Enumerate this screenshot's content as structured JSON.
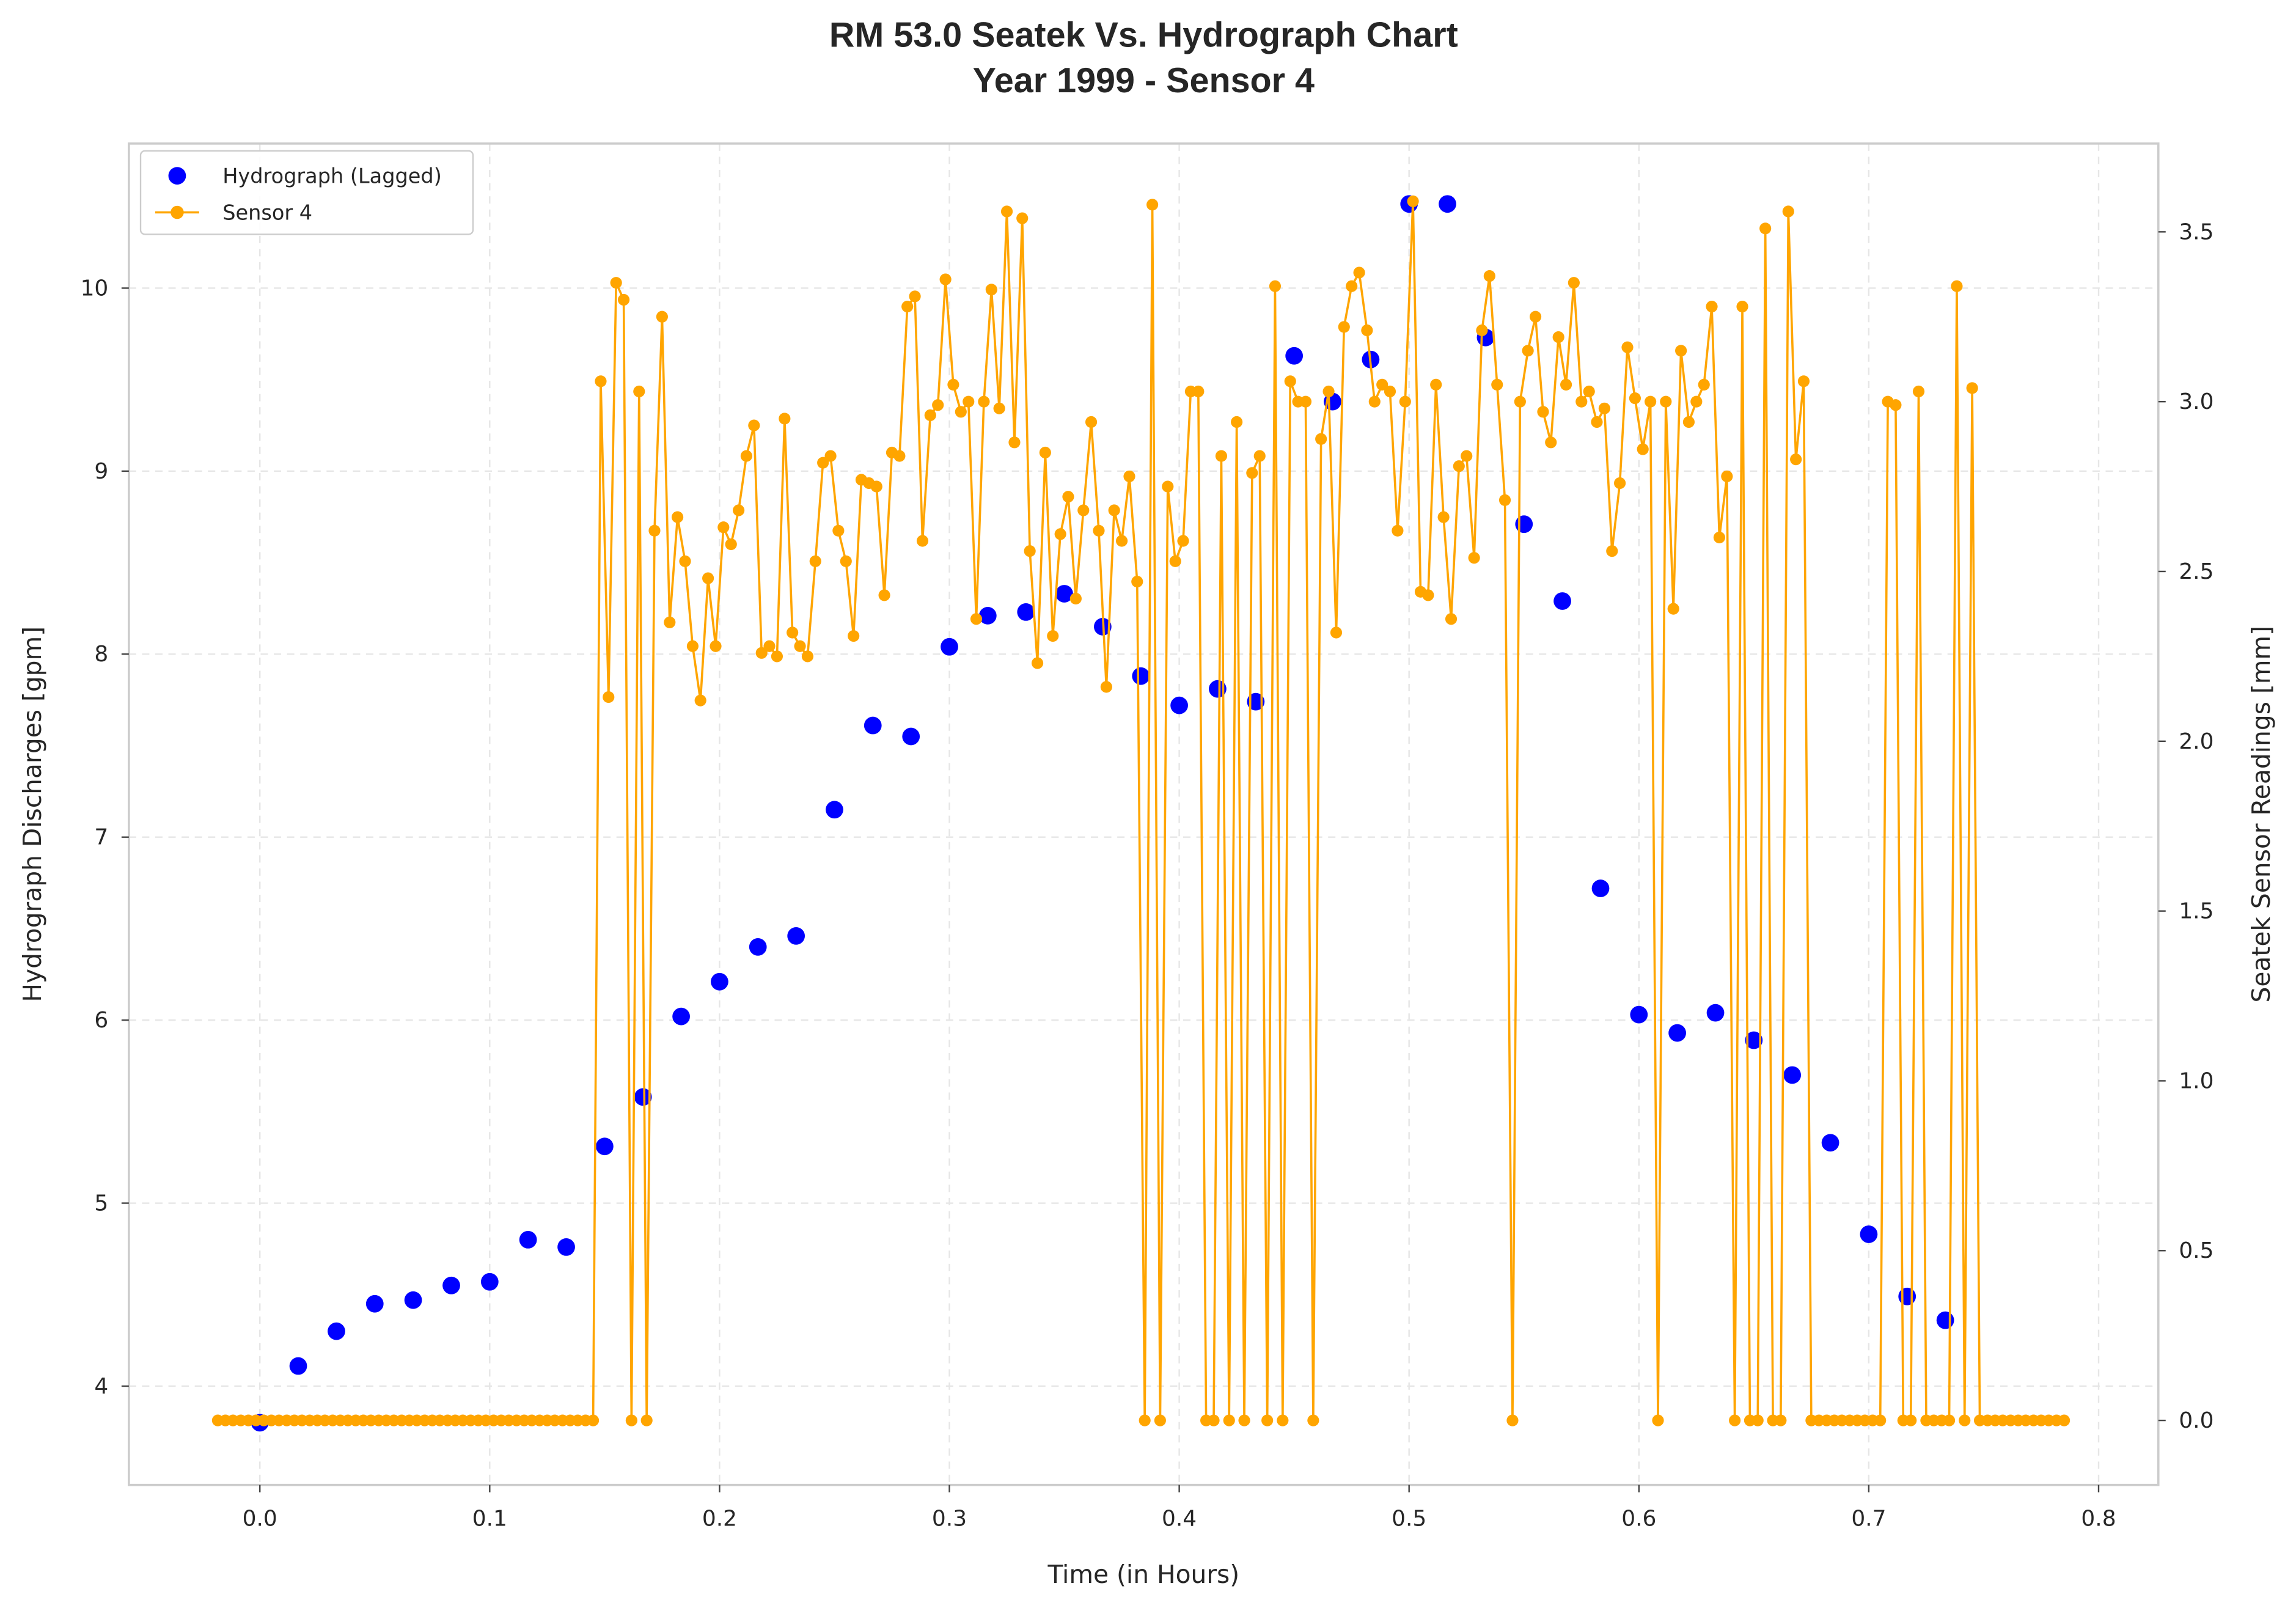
{
  "chart_data": {
    "type": "line",
    "title": "RM 53.0 Seatek Vs. Hydrograph Chart",
    "subtitle": "Year 1999 - Sensor 4",
    "x_label": "Time (in Hours)",
    "y_label": "Hydrograph Discharges [gpm]",
    "y2_label": "Seatek Sensor Readings [mm]",
    "xlim": [
      -0.057,
      0.826
    ],
    "xticks": [
      {
        "value": 0,
        "label": "0.0"
      },
      0.1,
      0.2,
      0.3,
      0.4,
      0.5,
      0.6,
      0.7,
      0.8
    ],
    "ylim": [
      3.46,
      10.79
    ],
    "yticks": [
      4,
      5,
      6,
      7,
      8,
      9,
      10
    ],
    "y2lim": [
      -0.19,
      3.76
    ],
    "y2ticks": [
      {
        "value": 0,
        "label": "0.0"
      },
      0.5,
      {
        "value": 1,
        "label": "1.0"
      },
      1.5,
      {
        "value": 2,
        "label": "2.0"
      },
      2.5,
      {
        "value": 3,
        "label": "3.0"
      },
      3.5
    ],
    "grid": true,
    "legend": "upper left",
    "series": [
      {
        "name": "Hydrograph (Lagged)",
        "color": "#0000ff",
        "style": "markers",
        "axis": "y",
        "x": [
          0,
          0.0167,
          0.0333,
          0.05,
          0.0667,
          0.0833,
          0.1,
          0.1167,
          0.1333,
          0.15,
          0.1667,
          0.1833,
          0.2,
          0.2167,
          0.2333,
          0.25,
          0.2667,
          0.2833,
          0.3,
          0.3167,
          0.3333,
          0.35,
          0.3667,
          0.3833,
          0.4,
          0.4167,
          0.4333,
          0.45,
          0.4667,
          0.4833,
          0.5,
          0.5167,
          0.5333,
          0.55,
          0.5667,
          0.5833,
          0.6,
          0.6167,
          0.6333,
          0.65,
          0.6667,
          0.6833,
          0.7,
          0.7167,
          0.7333
        ],
        "values": [
          3.8,
          4.11,
          4.3,
          4.45,
          4.47,
          4.55,
          4.57,
          4.8,
          4.76,
          5.31,
          5.58,
          6.02,
          6.21,
          6.4,
          6.46,
          7.15,
          7.61,
          7.55,
          8.04,
          8.21,
          8.23,
          8.33,
          8.15,
          7.88,
          7.72,
          7.81,
          7.74,
          9.63,
          9.38,
          9.61,
          10.46,
          10.46,
          9.73,
          8.71,
          8.29,
          6.72,
          6.03,
          5.93,
          6.04,
          5.89,
          5.7,
          5.33,
          4.83,
          4.49,
          4.36
        ]
      },
      {
        "name": "Sensor 4",
        "color": "#ffa500",
        "style": "lines+markers",
        "axis": "y2",
        "x": [
          -0.0183,
          -0.015,
          -0.0117,
          -0.0083,
          -0.005,
          -0.0017,
          0.0017,
          0.005,
          0.0083,
          0.0117,
          0.015,
          0.0183,
          0.0217,
          0.025,
          0.0283,
          0.0317,
          0.035,
          0.0383,
          0.0417,
          0.045,
          0.0483,
          0.0517,
          0.055,
          0.0583,
          0.0617,
          0.065,
          0.0683,
          0.0717,
          0.075,
          0.0783,
          0.0817,
          0.085,
          0.0883,
          0.0917,
          0.095,
          0.0983,
          0.1017,
          0.105,
          0.1083,
          0.1117,
          0.115,
          0.1183,
          0.1217,
          0.125,
          0.1283,
          0.1317,
          0.135,
          0.1383,
          0.1417,
          0.145,
          0.1483,
          0.1517,
          0.155,
          0.1583,
          0.1617,
          0.165,
          0.1683,
          0.1717,
          0.175,
          0.1783,
          0.1817,
          0.185,
          0.1883,
          0.1917,
          0.195,
          0.1983,
          0.2017,
          0.205,
          0.2083,
          0.2117,
          0.215,
          0.2183,
          0.2217,
          0.225,
          0.2283,
          0.2317,
          0.235,
          0.2383,
          0.2417,
          0.245,
          0.2483,
          0.2517,
          0.255,
          0.2583,
          0.2617,
          0.265,
          0.2683,
          0.2717,
          0.275,
          0.2783,
          0.2817,
          0.285,
          0.2883,
          0.2917,
          0.295,
          0.2983,
          0.3017,
          0.305,
          0.3083,
          0.3117,
          0.315,
          0.3183,
          0.3217,
          0.325,
          0.3283,
          0.3317,
          0.335,
          0.3383,
          0.3417,
          0.345,
          0.3483,
          0.3517,
          0.355,
          0.3583,
          0.3617,
          0.365,
          0.3683,
          0.3717,
          0.375,
          0.3783,
          0.3817,
          0.385,
          0.3883,
          0.3917,
          0.395,
          0.3983,
          0.4017,
          0.405,
          0.4083,
          0.4117,
          0.415,
          0.4183,
          0.4217,
          0.425,
          0.4283,
          0.4317,
          0.435,
          0.4383,
          0.4417,
          0.445,
          0.4483,
          0.4517,
          0.455,
          0.4583,
          0.4617,
          0.465,
          0.4683,
          0.4717,
          0.475,
          0.4783,
          0.4817,
          0.485,
          0.4883,
          0.4917,
          0.495,
          0.4983,
          0.5017,
          0.505,
          0.5083,
          0.5117,
          0.515,
          0.5183,
          0.5217,
          0.525,
          0.5283,
          0.5317,
          0.535,
          0.5383,
          0.5417,
          0.545,
          0.5483,
          0.5517,
          0.555,
          0.5583,
          0.5617,
          0.565,
          0.5683,
          0.5717,
          0.575,
          0.5783,
          0.5817,
          0.585,
          0.5883,
          0.5917,
          0.595,
          0.5983,
          0.6017,
          0.605,
          0.6083,
          0.6117,
          0.615,
          0.6183,
          0.6217,
          0.625,
          0.6283,
          0.6317,
          0.635,
          0.6383,
          0.6417,
          0.645,
          0.6483,
          0.6517,
          0.655,
          0.6583,
          0.6617,
          0.665,
          0.6683,
          0.6717,
          0.675,
          0.6783,
          0.6817,
          0.685,
          0.6883,
          0.6917,
          0.695,
          0.6983,
          0.7017,
          0.705,
          0.7083,
          0.7117,
          0.715,
          0.7183,
          0.7217,
          0.725,
          0.7283,
          0.7317,
          0.735,
          0.7383,
          0.7417,
          0.745,
          0.7483,
          0.7517,
          0.755,
          0.7583,
          0.7617,
          0.765,
          0.7683,
          0.7717,
          0.775,
          0.7783,
          0.7817,
          0.785
        ],
        "values": [
          0,
          0,
          0,
          0,
          0,
          0,
          0,
          0,
          0,
          0,
          0,
          0,
          0,
          0,
          0,
          0,
          0,
          0,
          0,
          0,
          0,
          0,
          0,
          0,
          0,
          0,
          0,
          0,
          0,
          0,
          0,
          0,
          0,
          0,
          0,
          0,
          0,
          0,
          0,
          0,
          0,
          0,
          0,
          0,
          0,
          0,
          0,
          0,
          0,
          0,
          3.06,
          2.13,
          3.35,
          3.3,
          0,
          3.03,
          0,
          2.62,
          3.25,
          2.35,
          2.66,
          2.53,
          2.28,
          2.12,
          2.48,
          2.28,
          2.63,
          2.58,
          2.68,
          2.84,
          2.93,
          2.26,
          2.28,
          2.25,
          2.95,
          2.32,
          2.28,
          2.25,
          2.53,
          2.82,
          2.84,
          2.62,
          2.53,
          2.31,
          2.77,
          2.76,
          2.75,
          2.43,
          2.85,
          2.84,
          3.28,
          3.31,
          2.59,
          2.96,
          2.99,
          3.36,
          3.05,
          2.97,
          3.0,
          2.36,
          3.0,
          3.33,
          2.98,
          3.56,
          2.88,
          3.54,
          2.56,
          2.23,
          2.85,
          2.31,
          2.61,
          2.72,
          2.42,
          2.68,
          2.94,
          2.62,
          2.16,
          2.68,
          2.59,
          2.78,
          2.47,
          0,
          3.58,
          0,
          2.75,
          2.53,
          2.59,
          3.03,
          3.03,
          0,
          0,
          2.84,
          0,
          2.94,
          0,
          2.79,
          2.84,
          0,
          3.34,
          0,
          3.06,
          3.0,
          3.0,
          0,
          2.89,
          3.03,
          2.32,
          3.22,
          3.34,
          3.38,
          3.21,
          3.0,
          3.05,
          3.03,
          2.62,
          3.0,
          3.59,
          2.44,
          2.43,
          3.05,
          2.66,
          2.36,
          2.81,
          2.84,
          2.54,
          3.21,
          3.37,
          3.05,
          2.71,
          0,
          3.0,
          3.15,
          3.25,
          2.97,
          2.88,
          3.19,
          3.05,
          3.35,
          3.0,
          3.03,
          2.94,
          2.98,
          2.56,
          2.76,
          3.16,
          3.01,
          2.86,
          3.0,
          0,
          3.0,
          2.39,
          3.15,
          2.94,
          3.0,
          3.05,
          3.28,
          2.6,
          2.78,
          0,
          3.28,
          0,
          0,
          3.51,
          0,
          0,
          3.56,
          2.83,
          3.06,
          0,
          0,
          0,
          0,
          0,
          0,
          0,
          0,
          0,
          0,
          3.0,
          2.99,
          0,
          0,
          3.03,
          0,
          0,
          0,
          0,
          3.34,
          0,
          3.04,
          0,
          0,
          0,
          0,
          0,
          0,
          0,
          0,
          0,
          0,
          0,
          0
        ]
      }
    ]
  }
}
